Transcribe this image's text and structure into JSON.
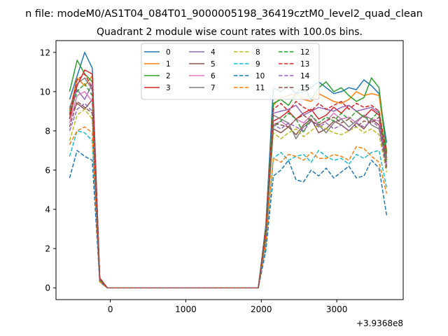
{
  "chart_data": {
    "type": "line",
    "suptitle": "n file: modeM0/AS1T04_084T01_9000005198_36419cztM0_level2_quad_clean",
    "title": "Quadrant 2 module wise count rates with 100.0s bins.",
    "xlabel": "",
    "ylabel": "",
    "x_offset_label": "+3.9368e8",
    "xlim": [
      -720,
      3880
    ],
    "ylim": [
      -0.6,
      12.6
    ],
    "xticks": [
      0,
      1000,
      2000,
      3000
    ],
    "yticks": [
      0,
      2,
      4,
      6,
      8,
      10,
      12
    ],
    "grid": false,
    "legend_placement": "top-center",
    "legend_columns": 4,
    "x": [
      -540,
      -440,
      -340,
      -240,
      -140,
      -40,
      60,
      160,
      260,
      360,
      460,
      560,
      660,
      760,
      860,
      960,
      1060,
      1160,
      1260,
      1360,
      1460,
      1560,
      1660,
      1760,
      1860,
      1960,
      2060,
      2160,
      2260,
      2360,
      2460,
      2560,
      2660,
      2760,
      2860,
      2960,
      3060,
      3160,
      3260,
      3360,
      3460,
      3560,
      3660
    ],
    "series": [
      {
        "name": "0",
        "color": "#1f77b4",
        "dash": "solid",
        "values": [
          9.6,
          10.8,
          12.0,
          11.2,
          0.5,
          0.0,
          0.0,
          0.0,
          0.0,
          0.0,
          0.0,
          0.0,
          0.0,
          0.0,
          0.0,
          0.0,
          0.0,
          0.0,
          0.0,
          0.0,
          0.0,
          0.0,
          0.0,
          0.0,
          0.0,
          0.0,
          3.2,
          10.2,
          10.0,
          10.3,
          9.9,
          10.0,
          10.2,
          10.5,
          10.2,
          9.9,
          10.0,
          10.2,
          10.1,
          10.6,
          10.3,
          9.9,
          7.4
        ]
      },
      {
        "name": "1",
        "color": "#ff7f0e",
        "dash": "solid",
        "values": [
          9.0,
          10.7,
          10.3,
          10.8,
          0.4,
          0.0,
          0.0,
          0.0,
          0.0,
          0.0,
          0.0,
          0.0,
          0.0,
          0.0,
          0.0,
          0.0,
          0.0,
          0.0,
          0.0,
          0.0,
          0.0,
          0.0,
          0.0,
          0.0,
          0.0,
          0.0,
          3.0,
          9.3,
          9.7,
          9.8,
          9.9,
          9.6,
          9.5,
          9.9,
          9.7,
          9.5,
          9.4,
          9.6,
          10.0,
          9.8,
          9.9,
          9.8,
          7.0
        ]
      },
      {
        "name": "2",
        "color": "#2ca02c",
        "dash": "solid",
        "values": [
          10.0,
          11.6,
          10.9,
          10.5,
          0.5,
          0.0,
          0.0,
          0.0,
          0.0,
          0.0,
          0.0,
          0.0,
          0.0,
          0.0,
          0.0,
          0.0,
          0.0,
          0.0,
          0.0,
          0.0,
          0.0,
          0.0,
          0.0,
          0.0,
          0.0,
          0.0,
          3.1,
          9.4,
          9.6,
          9.3,
          9.9,
          10.3,
          9.6,
          10.2,
          10.5,
          10.0,
          10.2,
          9.8,
          9.5,
          9.7,
          10.7,
          10.2,
          6.9
        ]
      },
      {
        "name": "3",
        "color": "#d62728",
        "dash": "solid",
        "values": [
          8.6,
          10.3,
          11.1,
          10.9,
          0.5,
          0.0,
          0.0,
          0.0,
          0.0,
          0.0,
          0.0,
          0.0,
          0.0,
          0.0,
          0.0,
          0.0,
          0.0,
          0.0,
          0.0,
          0.0,
          0.0,
          0.0,
          0.0,
          0.0,
          0.0,
          0.0,
          2.9,
          8.5,
          8.7,
          9.0,
          8.6,
          8.9,
          9.1,
          8.6,
          8.8,
          9.2,
          8.9,
          9.3,
          9.0,
          8.7,
          9.1,
          8.8,
          6.6
        ]
      },
      {
        "name": "4",
        "color": "#9467bd",
        "dash": "solid",
        "values": [
          9.2,
          10.1,
          9.6,
          10.4,
          0.4,
          0.0,
          0.0,
          0.0,
          0.0,
          0.0,
          0.0,
          0.0,
          0.0,
          0.0,
          0.0,
          0.0,
          0.0,
          0.0,
          0.0,
          0.0,
          0.0,
          0.0,
          0.0,
          0.0,
          0.0,
          0.0,
          2.8,
          8.9,
          9.0,
          9.1,
          9.3,
          8.8,
          9.0,
          9.2,
          9.1,
          9.0,
          9.2,
          9.3,
          9.0,
          9.1,
          9.2,
          8.9,
          6.7
        ]
      },
      {
        "name": "5",
        "color": "#8c564b",
        "dash": "solid",
        "values": [
          8.7,
          9.4,
          9.1,
          9.6,
          0.4,
          0.0,
          0.0,
          0.0,
          0.0,
          0.0,
          0.0,
          0.0,
          0.0,
          0.0,
          0.0,
          0.0,
          0.0,
          0.0,
          0.0,
          0.0,
          0.0,
          0.0,
          0.0,
          0.0,
          0.0,
          0.0,
          2.7,
          8.1,
          7.9,
          8.2,
          7.8,
          8.3,
          8.6,
          7.9,
          8.1,
          8.5,
          8.3,
          8.0,
          8.4,
          8.1,
          8.6,
          8.3,
          6.2
        ]
      },
      {
        "name": "6",
        "color": "#e377c2",
        "dash": "solid",
        "values": [
          8.4,
          9.8,
          10.0,
          9.5,
          0.4,
          0.0,
          0.0,
          0.0,
          0.0,
          0.0,
          0.0,
          0.0,
          0.0,
          0.0,
          0.0,
          0.0,
          0.0,
          0.0,
          0.0,
          0.0,
          0.0,
          0.0,
          0.0,
          0.0,
          0.0,
          0.0,
          2.8,
          8.3,
          8.5,
          8.2,
          8.6,
          8.4,
          8.8,
          8.3,
          8.5,
          8.9,
          8.6,
          8.7,
          8.4,
          8.8,
          8.6,
          8.5,
          6.3
        ]
      },
      {
        "name": "7",
        "color": "#7f7f7f",
        "dash": "solid",
        "values": [
          9.1,
          10.4,
          10.7,
          10.1,
          0.4,
          0.0,
          0.0,
          0.0,
          0.0,
          0.0,
          0.0,
          0.0,
          0.0,
          0.0,
          0.0,
          0.0,
          0.0,
          0.0,
          0.0,
          0.0,
          0.0,
          0.0,
          0.0,
          0.0,
          0.0,
          0.0,
          2.9,
          8.8,
          8.6,
          8.4,
          7.6,
          8.2,
          8.5,
          8.3,
          7.9,
          8.4,
          8.6,
          8.2,
          8.5,
          8.8,
          8.3,
          8.1,
          6.4
        ]
      },
      {
        "name": "8",
        "color": "#bcbd22",
        "dash": "dashed",
        "values": [
          7.5,
          8.8,
          9.1,
          8.6,
          0.4,
          0.0,
          0.0,
          0.0,
          0.0,
          0.0,
          0.0,
          0.0,
          0.0,
          0.0,
          0.0,
          0.0,
          0.0,
          0.0,
          0.0,
          0.0,
          0.0,
          0.0,
          0.0,
          0.0,
          0.0,
          0.0,
          2.5,
          7.9,
          7.6,
          7.9,
          8.1,
          7.7,
          8.0,
          8.3,
          8.1,
          7.9,
          7.8,
          8.0,
          8.2,
          7.9,
          8.1,
          7.8,
          5.9
        ]
      },
      {
        "name": "9",
        "color": "#17becf",
        "dash": "dashed",
        "values": [
          6.7,
          8.0,
          7.9,
          7.5,
          0.3,
          0.0,
          0.0,
          0.0,
          0.0,
          0.0,
          0.0,
          0.0,
          0.0,
          0.0,
          0.0,
          0.0,
          0.0,
          0.0,
          0.0,
          0.0,
          0.0,
          0.0,
          0.0,
          0.0,
          0.0,
          0.0,
          2.2,
          6.6,
          6.9,
          6.5,
          6.7,
          6.8,
          6.4,
          7.0,
          6.7,
          6.5,
          6.6,
          6.3,
          6.8,
          6.6,
          6.9,
          7.0,
          5.1
        ]
      },
      {
        "name": "10",
        "color": "#1f77b4",
        "dash": "dashed",
        "values": [
          5.6,
          7.0,
          6.7,
          6.5,
          0.3,
          0.0,
          0.0,
          0.0,
          0.0,
          0.0,
          0.0,
          0.0,
          0.0,
          0.0,
          0.0,
          0.0,
          0.0,
          0.0,
          0.0,
          0.0,
          0.0,
          0.0,
          0.0,
          0.0,
          0.0,
          0.0,
          1.9,
          5.7,
          6.0,
          6.5,
          5.5,
          5.4,
          6.0,
          5.7,
          6.1,
          5.6,
          5.9,
          6.2,
          5.6,
          5.7,
          6.5,
          6.1,
          3.7
        ]
      },
      {
        "name": "11",
        "color": "#ff7f0e",
        "dash": "dashed",
        "values": [
          7.3,
          8.0,
          8.2,
          7.9,
          0.3,
          0.0,
          0.0,
          0.0,
          0.0,
          0.0,
          0.0,
          0.0,
          0.0,
          0.0,
          0.0,
          0.0,
          0.0,
          0.0,
          0.0,
          0.0,
          0.0,
          0.0,
          0.0,
          0.0,
          0.0,
          0.0,
          2.3,
          6.6,
          6.4,
          6.8,
          6.7,
          6.5,
          6.9,
          6.6,
          6.6,
          6.8,
          6.7,
          6.5,
          7.2,
          7.1,
          6.7,
          6.4,
          4.8
        ]
      },
      {
        "name": "12",
        "color": "#2ca02c",
        "dash": "dashed",
        "values": [
          8.9,
          10.0,
          10.4,
          9.8,
          0.4,
          0.0,
          0.0,
          0.0,
          0.0,
          0.0,
          0.0,
          0.0,
          0.0,
          0.0,
          0.0,
          0.0,
          0.0,
          0.0,
          0.0,
          0.0,
          0.0,
          0.0,
          0.0,
          0.0,
          0.0,
          0.0,
          2.8,
          8.2,
          8.5,
          8.9,
          8.6,
          7.9,
          8.8,
          8.4,
          8.7,
          8.5,
          8.9,
          8.6,
          9.0,
          8.7,
          8.6,
          9.0,
          6.5
        ]
      },
      {
        "name": "13",
        "color": "#d62728",
        "dash": "dashed",
        "values": [
          8.8,
          10.6,
          10.9,
          10.2,
          0.5,
          0.0,
          0.0,
          0.0,
          0.0,
          0.0,
          0.0,
          0.0,
          0.0,
          0.0,
          0.0,
          0.0,
          0.0,
          0.0,
          0.0,
          0.0,
          0.0,
          0.0,
          0.0,
          0.0,
          0.0,
          0.0,
          3.0,
          9.1,
          9.4,
          9.0,
          9.5,
          9.2,
          9.0,
          9.4,
          9.1,
          9.3,
          9.5,
          9.1,
          9.4,
          9.2,
          9.3,
          9.0,
          6.8
        ]
      },
      {
        "name": "14",
        "color": "#9467bd",
        "dash": "dashed",
        "values": [
          8.0,
          9.1,
          9.4,
          9.0,
          0.4,
          0.0,
          0.0,
          0.0,
          0.0,
          0.0,
          0.0,
          0.0,
          0.0,
          0.0,
          0.0,
          0.0,
          0.0,
          0.0,
          0.0,
          0.0,
          0.0,
          0.0,
          0.0,
          0.0,
          0.0,
          0.0,
          2.6,
          8.3,
          8.1,
          8.4,
          8.2,
          8.0,
          8.5,
          8.2,
          8.4,
          8.1,
          8.3,
          8.0,
          8.4,
          8.2,
          8.5,
          8.2,
          6.0
        ]
      },
      {
        "name": "15",
        "color": "#8c564b",
        "dash": "dashed",
        "values": [
          8.2,
          9.5,
          9.2,
          8.9,
          0.4,
          0.0,
          0.0,
          0.0,
          0.0,
          0.0,
          0.0,
          0.0,
          0.0,
          0.0,
          0.0,
          0.0,
          0.0,
          0.0,
          0.0,
          0.0,
          0.0,
          0.0,
          0.0,
          0.0,
          0.0,
          0.0,
          2.7,
          8.4,
          8.3,
          8.2,
          8.6,
          8.8,
          8.5,
          8.3,
          8.5,
          8.7,
          8.4,
          8.6,
          8.2,
          8.5,
          8.4,
          8.7,
          6.1
        ]
      }
    ]
  }
}
